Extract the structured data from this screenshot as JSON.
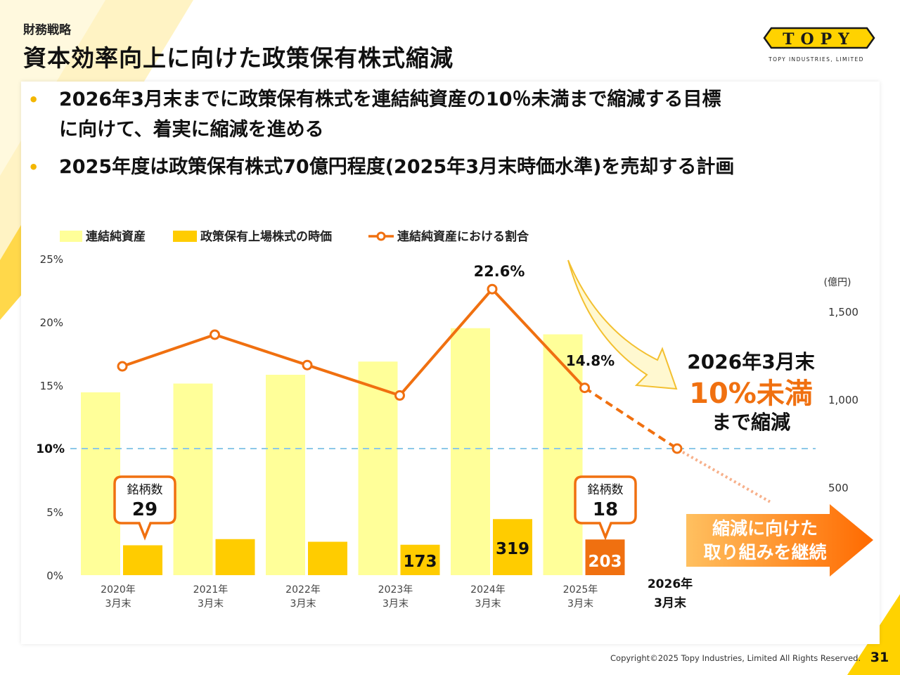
{
  "header": {
    "section": "財務戦略",
    "title": "資本効率向上に向けた政策保有株式縮減",
    "logo_text": "TOPY",
    "logo_sub": "TOPY INDUSTRIES, LIMITED"
  },
  "bullets": [
    "2026年3月末までに政策保有株式を連結純資産の10％未満まで縮減する目標",
    "に向けて、着実に縮減を進める",
    "2025年度は政策保有株式70億円程度(2025年3月末時価水準)を売却する計画"
  ],
  "bullet_dot": "•",
  "colors": {
    "net_assets": "#ffff99",
    "holdings": "#ffcc00",
    "holdings_highlight": "#f07010",
    "ratio_line": "#f07010",
    "target_line": "#8cc8e8",
    "accent_yellow": "#ffd200"
  },
  "chart_data": {
    "type": "bar",
    "categories_line1": [
      "2020年",
      "2021年",
      "2022年",
      "2023年",
      "2024年",
      "2025年",
      "2026年"
    ],
    "categories_line2": [
      "3月末",
      "3月末",
      "3月末",
      "3月末",
      "3月末",
      "3月末",
      "3月末"
    ],
    "legend": [
      "連結純資産",
      "政策保有上場株式の時価",
      "連結純資産における割合"
    ],
    "left_axis": {
      "ticks": [
        "0%",
        "5%",
        "10%",
        "15%",
        "20%",
        "25%"
      ],
      "values": [
        0,
        5,
        10,
        15,
        20,
        25
      ],
      "ylim": [
        0,
        25
      ]
    },
    "right_axis": {
      "unit": "(億円)",
      "ticks": [
        "500",
        "1,000",
        "1,500"
      ],
      "values": [
        500,
        1000,
        1500
      ]
    },
    "series": [
      {
        "name": "連結純資産",
        "values": [
          1040,
          1090,
          1140,
          1215,
          1405,
          1370,
          null
        ]
      },
      {
        "name": "政策保有上場株式の時価",
        "values": [
          170,
          205,
          190,
          173,
          319,
          203,
          null
        ]
      },
      {
        "name": "連結純資産における割合",
        "values": [
          16.5,
          19.0,
          16.6,
          14.2,
          22.6,
          14.8,
          10.0
        ]
      }
    ],
    "bar_labels": [
      "",
      "",
      "",
      "173",
      "319",
      "203"
    ],
    "ratio_labels": {
      "2024": "22.6%",
      "2025": "14.8%"
    },
    "target_line_value": 10,
    "target_line_label": "10%",
    "callouts": [
      {
        "title": "銘柄数",
        "value": "29"
      },
      {
        "title": "銘柄数",
        "value": "18"
      }
    ],
    "target_text": {
      "line1": "2026年3月末",
      "line2": "10%未満",
      "line3": "まで縮減"
    },
    "arrow_text": {
      "line1": "縮減に向けた",
      "line2": "取り組みを継続"
    }
  },
  "footer": {
    "copyright": "Copyright©2025 Topy Industries, Limited All Rights Reserved.",
    "page": "31"
  }
}
